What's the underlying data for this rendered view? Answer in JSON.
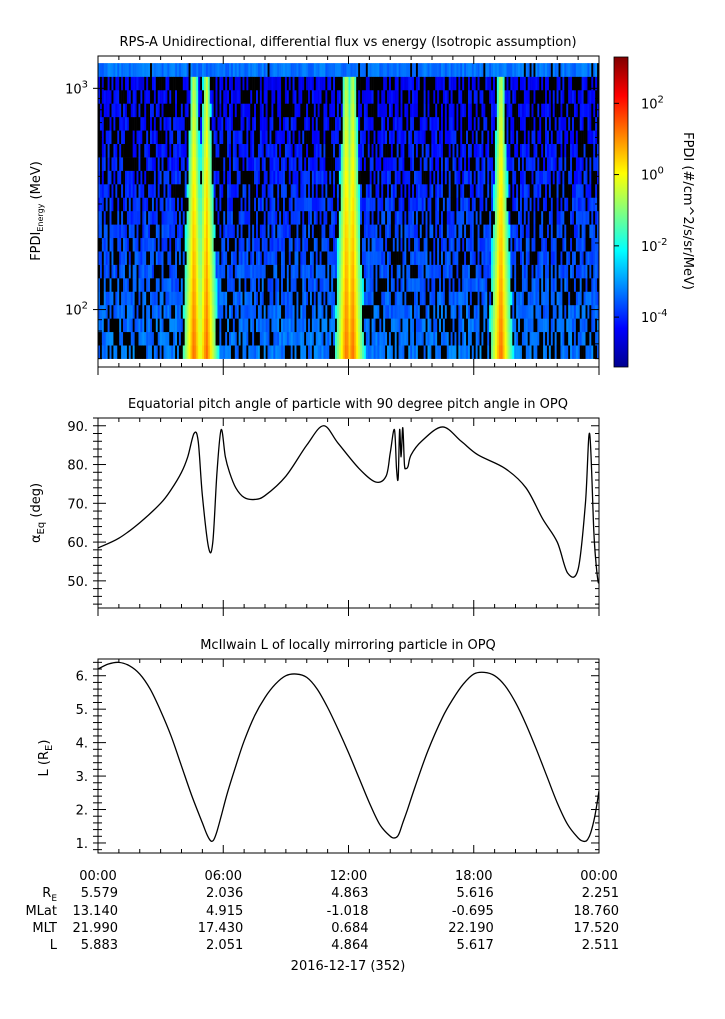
{
  "chart_data": [
    {
      "type": "heatmap",
      "title": "RPS-A Unidirectional, differential flux vs energy (Isotropic assumption)",
      "ylabel": "FPDI",
      "ylabel_sub": "Energy",
      "ylabel_unit": "(MeV)",
      "ylim": [
        55,
        1400
      ],
      "yscale": "log",
      "y_ticks": [
        {
          "value": 100,
          "base": "10",
          "exp": "2"
        },
        {
          "value": 1000,
          "base": "10",
          "exp": "3"
        }
      ],
      "energy_channels_top": 1300,
      "energy_channels_bottom": 60,
      "high_flux_bands_hours": [
        4.6,
        5.2,
        11.9,
        12.2,
        19.3
      ],
      "colorbar": {
        "label": "FPDI (#/cm^2/s/sr/MeV)",
        "range_log10": [
          -5.4,
          3.3
        ],
        "ticks": [
          {
            "base": "10",
            "exp": "2",
            "value_log10": 2
          },
          {
            "base": "10",
            "exp": "0",
            "value_log10": 0
          },
          {
            "base": "10",
            "exp": "-2",
            "value_log10": -2
          },
          {
            "base": "10",
            "exp": "-4",
            "value_log10": -4
          }
        ],
        "colors": [
          "#00008f",
          "#0000ff",
          "#0080ff",
          "#00ffff",
          "#80ff80",
          "#ffff00",
          "#ff8000",
          "#ff0000",
          "#800000"
        ]
      }
    },
    {
      "type": "line",
      "title": "Equatorial pitch angle of particle with 90 degree pitch angle in OPQ",
      "ylabel": "α",
      "ylabel_sub": "Eq",
      "ylabel_unit": "(deg)",
      "ylim": [
        43,
        92
      ],
      "y_ticks": [
        "90.",
        "80.",
        "70.",
        "60.",
        "50."
      ],
      "x_hours": [
        0,
        1,
        2,
        3,
        3.5,
        4.0,
        4.3,
        4.6,
        4.8,
        5.0,
        5.3,
        5.5,
        5.7,
        5.9,
        6.1,
        6.3,
        6.6,
        7,
        7.5,
        8,
        9,
        10,
        10.8,
        11.5,
        12.5,
        13.3,
        13.8,
        14.0,
        14.2,
        14.3,
        14.38,
        14.45,
        14.52,
        14.6,
        14.68,
        14.75,
        14.85,
        15.0,
        15.5,
        16.5,
        17.4,
        18.2,
        19.5,
        20.5,
        21.3,
        22.0,
        22.5,
        23.0,
        23.35,
        23.55,
        23.75,
        23.85,
        23.95,
        24.0
      ],
      "y_deg": [
        58.5,
        61,
        65,
        70,
        73.5,
        78,
        82,
        88,
        86,
        72,
        58.5,
        60,
        78,
        89,
        82,
        78,
        74,
        71.5,
        71,
        72,
        77,
        85,
        90,
        85.5,
        79,
        75.5,
        77,
        83,
        89,
        79,
        76.5,
        89,
        82,
        89.5,
        80,
        79,
        79.5,
        82.5,
        86,
        89.7,
        86,
        82.5,
        79,
        74,
        66,
        60,
        52,
        53,
        70,
        88,
        63,
        55,
        50,
        49.5
      ]
    },
    {
      "type": "line",
      "title": "McIlwain L of locally mirroring particle in OPQ",
      "ylabel": "L (R",
      "ylabel_sub": "E",
      "ylabel_unit": ")",
      "ylim": [
        0.7,
        6.5
      ],
      "y_ticks": [
        "6.",
        "5.",
        "4.",
        "3.",
        "2.",
        "1."
      ],
      "x_hours": [
        0,
        0.5,
        1,
        1.5,
        2,
        2.5,
        3,
        3.5,
        4,
        4.5,
        5,
        5.2,
        5.35,
        5.45,
        5.55,
        5.7,
        5.9,
        6.2,
        6.6,
        7,
        7.5,
        8,
        8.5,
        9,
        9.5,
        10,
        10.5,
        11,
        11.5,
        12,
        12.5,
        13,
        13.5,
        14,
        14.2,
        14.35,
        14.45,
        14.6,
        14.8,
        15.2,
        15.8,
        16.5,
        17,
        17.5,
        18,
        18.5,
        19,
        19.5,
        20,
        20.5,
        21,
        21.5,
        22,
        22.5,
        23,
        23.2,
        23.35,
        23.45,
        23.6,
        23.8,
        24.0
      ],
      "y_L": [
        6.2,
        6.35,
        6.4,
        6.3,
        6.05,
        5.6,
        4.95,
        4.2,
        3.3,
        2.4,
        1.6,
        1.28,
        1.1,
        1.05,
        1.1,
        1.35,
        1.8,
        2.5,
        3.3,
        4.05,
        4.8,
        5.35,
        5.75,
        6.0,
        6.05,
        5.95,
        5.6,
        5.05,
        4.4,
        3.7,
        2.95,
        2.2,
        1.55,
        1.2,
        1.15,
        1.2,
        1.32,
        1.6,
        1.95,
        2.7,
        3.75,
        4.75,
        5.3,
        5.75,
        6.05,
        6.1,
        6.0,
        5.7,
        5.2,
        4.55,
        3.8,
        3.0,
        2.2,
        1.55,
        1.15,
        1.06,
        1.05,
        1.1,
        1.3,
        1.8,
        2.55
      ]
    }
  ],
  "time_axis": {
    "tick_labels": [
      "00:00",
      "06:00",
      "12:00",
      "18:00",
      "00:00"
    ],
    "date_label": "2016-12-17 (352)"
  },
  "ephemeris": {
    "row_labels": [
      {
        "base": "R",
        "sub": "E"
      },
      {
        "base": "MLat",
        "sub": ""
      },
      {
        "base": "MLT",
        "sub": ""
      },
      {
        "base": "L",
        "sub": ""
      }
    ],
    "values": [
      [
        "5.579",
        "2.036",
        "4.863",
        "5.616",
        "2.251"
      ],
      [
        "13.140",
        "4.915",
        "-1.018",
        "-0.695",
        "18.760"
      ],
      [
        "21.990",
        "17.430",
        "0.684",
        "22.190",
        "17.520"
      ],
      [
        "5.883",
        "2.051",
        "4.864",
        "5.617",
        "2.511"
      ]
    ]
  }
}
